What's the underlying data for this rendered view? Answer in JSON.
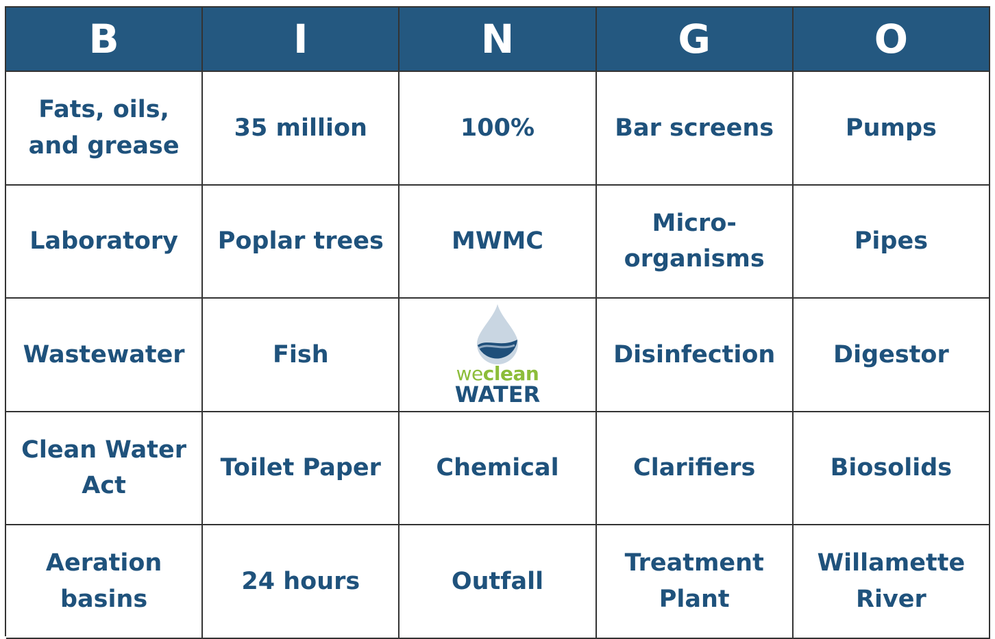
{
  "header": [
    "B",
    "I",
    "N",
    "G",
    "O"
  ],
  "rows": [
    [
      "Fats, oils, and grease",
      "35 million",
      "100%",
      "Bar screens",
      "Pumps"
    ],
    [
      "Laboratory",
      "Poplar trees",
      "MWMC",
      "Micro-organisms",
      "Pipes"
    ],
    [
      "Wastewater",
      "Fish",
      null,
      "Disinfection",
      "Digestor"
    ],
    [
      "Clean Water Act",
      "Toilet Paper",
      "Chemical",
      "Clarifiers",
      "Biosolids"
    ],
    [
      "Aeration basins",
      "24 hours",
      "Outfall",
      "Treatment Plant",
      "Willamette River"
    ]
  ],
  "free_space": {
    "logo_we": "we",
    "logo_clean": "clean",
    "logo_water": "WATER"
  }
}
